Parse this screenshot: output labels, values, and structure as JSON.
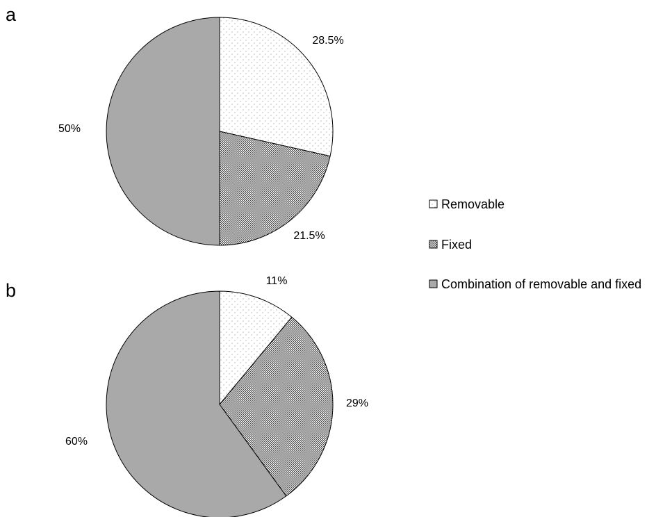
{
  "chart_data": [
    {
      "type": "pie",
      "panel": "a",
      "categories": [
        "Removable",
        "Fixed",
        "Combination of removable and fixed"
      ],
      "values": [
        28.5,
        21.5,
        50
      ],
      "labels": [
        "28.5%",
        "21.5%",
        "50%"
      ],
      "start": "12 o'clock",
      "direction": "clockwise"
    },
    {
      "type": "pie",
      "panel": "b",
      "categories": [
        "Removable",
        "Fixed",
        "Combination of removable and fixed"
      ],
      "values": [
        11,
        29,
        60
      ],
      "labels": [
        "11%",
        "29%",
        "60%"
      ],
      "start": "12 o'clock",
      "direction": "clockwise"
    }
  ],
  "legend": {
    "placement": "right",
    "items": [
      {
        "name": "Removable",
        "fill": "dots"
      },
      {
        "name": "Fixed",
        "fill": "checker"
      },
      {
        "name": "Combination of removable and fixed",
        "fill": "gray"
      }
    ]
  },
  "colors": {
    "gray_fill": "#a9a9a9",
    "dot_color": "#8a8a8a",
    "checker_dark": "#4a4a4a",
    "outline": "#000000"
  }
}
